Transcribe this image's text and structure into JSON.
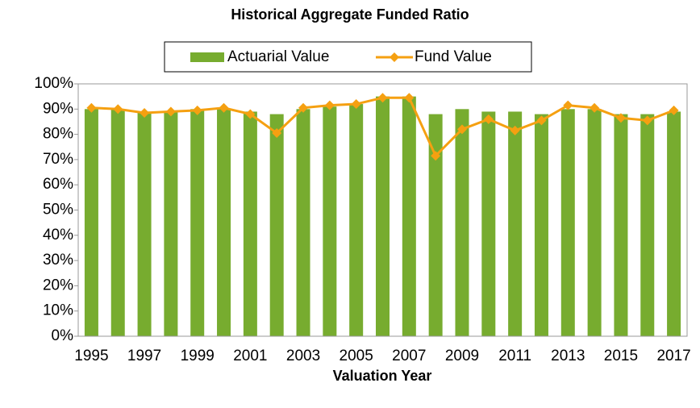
{
  "chart_data": {
    "type": "bar",
    "title": "Historical Aggregate Funded Ratio",
    "x_label": "Valuation Year",
    "categories": [
      "1995",
      null,
      "1997",
      null,
      "1999",
      null,
      "2001",
      null,
      "2003",
      null,
      "2005",
      null,
      "2007",
      null,
      "2009",
      null,
      "2011",
      null,
      "2013",
      null,
      "2015",
      null,
      "2017"
    ],
    "series": [
      {
        "name": "Actuarial Value",
        "type": "bar",
        "color": "#77ac2f",
        "values": [
          90,
          90,
          89,
          89,
          90,
          90,
          89,
          88,
          90,
          91,
          92,
          95,
          95,
          88,
          90,
          89,
          89,
          88,
          90,
          90,
          88,
          88,
          89
        ]
      },
      {
        "name": "Fund Value",
        "type": "line",
        "color": "#f5a011",
        "values": [
          90.5,
          90,
          88.5,
          89,
          89.5,
          90.5,
          88,
          80.5,
          90.5,
          91.5,
          92,
          94.5,
          94.5,
          71.5,
          82,
          86,
          81.5,
          85.5,
          91.5,
          90.5,
          86.5,
          85.5,
          89.5
        ]
      }
    ],
    "ylim": [
      0,
      100
    ],
    "yticks": [
      {
        "value": 0,
        "label": "0%"
      },
      {
        "value": 10,
        "label": "10%"
      },
      {
        "value": 20,
        "label": "20%"
      },
      {
        "value": 30,
        "label": "30%"
      },
      {
        "value": 40,
        "label": "40%"
      },
      {
        "value": 50,
        "label": "50%"
      },
      {
        "value": 60,
        "label": "60%"
      },
      {
        "value": 70,
        "label": "70%"
      },
      {
        "value": 80,
        "label": "80%"
      },
      {
        "value": 90,
        "label": "90%"
      },
      {
        "value": 100,
        "label": "100%"
      }
    ],
    "grid": false,
    "legend": "top"
  }
}
